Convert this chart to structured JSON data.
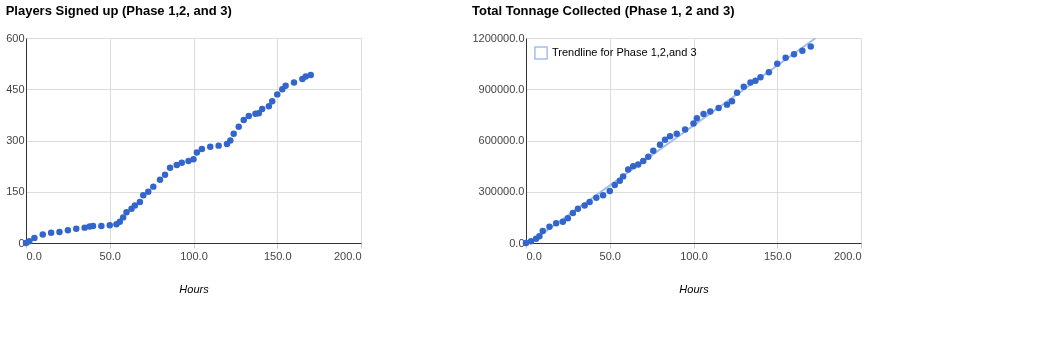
{
  "chart_data": [
    {
      "type": "scatter",
      "title": "Players Signed up (Phase 1,2, and 3)",
      "xlabel": "Hours",
      "xlim": [
        0,
        200
      ],
      "xticks": [
        {
          "value": 0,
          "label": "0.0"
        },
        {
          "value": 50,
          "label": "50.0"
        },
        {
          "value": 100,
          "label": "100.0"
        },
        {
          "value": 150,
          "label": "150.0"
        },
        {
          "value": 200,
          "label": "200.0"
        }
      ],
      "ylim": [
        0,
        600
      ],
      "yticks": [
        0,
        150,
        300,
        450,
        600
      ],
      "grid": true,
      "marker": "circle",
      "series": [
        {
          "color": "#3366cc",
          "x": [
            0,
            2,
            5,
            10,
            15,
            20,
            25,
            30,
            35,
            38,
            40,
            45,
            50,
            54,
            56,
            58,
            60,
            63,
            65,
            68,
            70,
            73,
            76,
            80,
            83,
            86,
            90,
            93,
            97,
            100,
            102,
            105,
            110,
            115,
            120,
            122,
            124,
            127,
            130,
            133,
            137,
            139,
            141,
            145,
            147,
            150,
            153,
            155,
            160,
            165,
            167,
            170
          ],
          "values": [
            0,
            5,
            15,
            25,
            30,
            32,
            37,
            42,
            45,
            48,
            50,
            50,
            52,
            55,
            62,
            75,
            90,
            100,
            110,
            120,
            140,
            150,
            165,
            185,
            200,
            220,
            228,
            235,
            240,
            245,
            265,
            275,
            282,
            285,
            290,
            300,
            320,
            340,
            360,
            372,
            378,
            380,
            392,
            400,
            415,
            435,
            450,
            460,
            470,
            480,
            487,
            492
          ]
        }
      ]
    },
    {
      "type": "scatter",
      "title": "Total Tonnage Collected (Phase 1, 2 and 3)",
      "xlabel": "Hours",
      "xlim": [
        0,
        200
      ],
      "xticks": [
        {
          "value": 0,
          "label": "0.0"
        },
        {
          "value": 50,
          "label": "50.0"
        },
        {
          "value": 100,
          "label": "100.0"
        },
        {
          "value": 150,
          "label": "150.0"
        },
        {
          "value": 200,
          "label": "200.0"
        }
      ],
      "ylim": [
        0,
        1200000
      ],
      "yticks": [
        {
          "value": 0,
          "label": "0.0"
        },
        {
          "value": 300000,
          "label": "300000.0"
        },
        {
          "value": 600000,
          "label": "600000.0"
        },
        {
          "value": 900000,
          "label": "900000.0"
        },
        {
          "value": 1200000,
          "label": "1200000.0"
        }
      ],
      "grid": true,
      "marker": "circle",
      "legend": "top left",
      "series": [
        {
          "type": "line",
          "name": "Trendline for Phase 1,2,and 3",
          "color": "#a4bdee",
          "marker": "none",
          "x": [
            2,
            173
          ],
          "values": [
            0,
            1200000
          ]
        },
        {
          "color": "#3366cc",
          "x": [
            0,
            3,
            6,
            8,
            10,
            14,
            18,
            22,
            25,
            28,
            31,
            35,
            38,
            42,
            46,
            50,
            53,
            56,
            58,
            61,
            64,
            67,
            70,
            73,
            76,
            80,
            83,
            86,
            90,
            95,
            100,
            102,
            106,
            110,
            115,
            120,
            123,
            126,
            130,
            134,
            137,
            140,
            145,
            150,
            155,
            160,
            165,
            170
          ],
          "values": [
            0,
            10000,
            25000,
            40000,
            70000,
            95000,
            115000,
            125000,
            145000,
            175000,
            200000,
            220000,
            240000,
            265000,
            280000,
            305000,
            340000,
            365000,
            390000,
            430000,
            450000,
            460000,
            480000,
            505000,
            540000,
            575000,
            605000,
            625000,
            640000,
            665000,
            700000,
            730000,
            755000,
            770000,
            790000,
            810000,
            830000,
            880000,
            915000,
            940000,
            950000,
            970000,
            1000000,
            1050000,
            1085000,
            1105000,
            1125000,
            1150000
          ]
        }
      ]
    }
  ]
}
